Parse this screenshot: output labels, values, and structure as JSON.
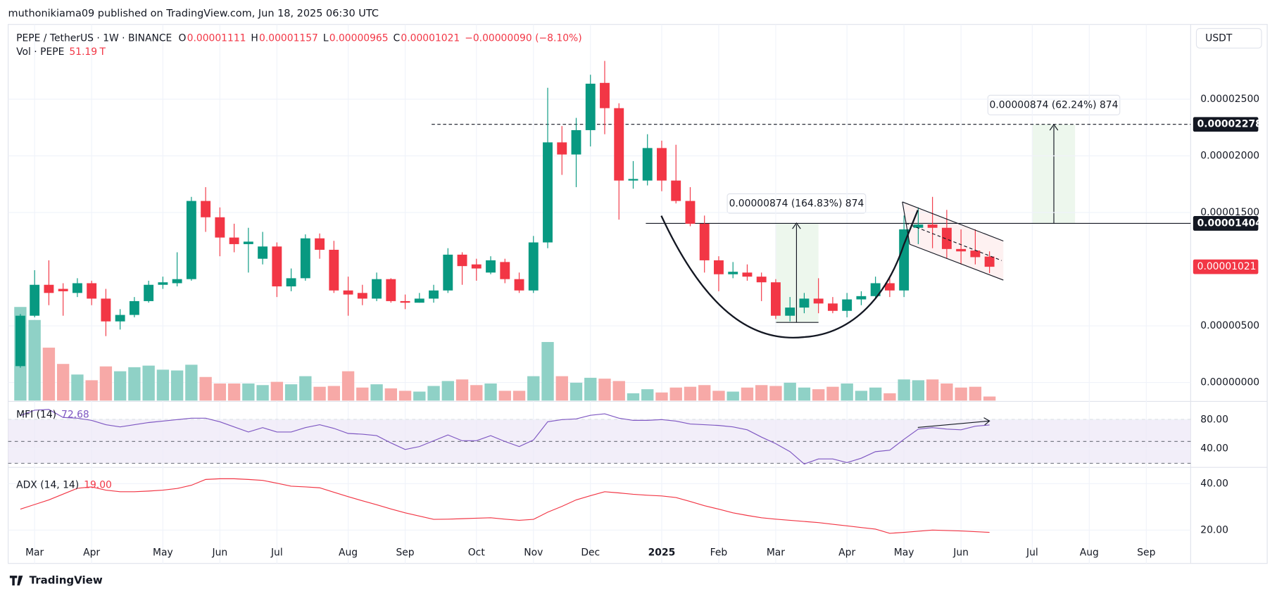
{
  "header": {
    "publisher": "muthonikiama09 published on TradingView.com, Jun 18, 2025 06:30 UTC",
    "brand": "TradingView",
    "currency": "USDT"
  },
  "chart_data": [
    {
      "type": "candlestick",
      "title": "PEPE / TetherUS · 1W · BINANCE",
      "ohlc_prefixes": [
        "O",
        "H",
        "L",
        "C"
      ],
      "change_label": "−0.00000090 (−8.10%)",
      "up_color": "#089981",
      "down_color": "#f23645",
      "categories": [
        null,
        "Mar",
        null,
        null,
        null,
        "Apr",
        null,
        null,
        null,
        null,
        "May",
        null,
        null,
        null,
        "Jun",
        null,
        null,
        null,
        "Jul",
        null,
        null,
        null,
        null,
        "Aug",
        null,
        null,
        null,
        "Sep",
        null,
        null,
        null,
        null,
        "Oct",
        null,
        null,
        null,
        "Nov",
        null,
        null,
        null,
        "Dec",
        null,
        null,
        null,
        null,
        "2025",
        null,
        null,
        null,
        "Feb",
        null,
        null,
        null,
        "Mar",
        null,
        null,
        null,
        null,
        "Apr",
        null,
        null,
        null,
        "May",
        null,
        null,
        null,
        "Jun",
        null,
        null,
        null,
        null,
        "Jul",
        null,
        null,
        null,
        "Aug",
        null,
        null,
        null,
        "Sep",
        null,
        null
      ],
      "open": [
        1.44e-06,
        5.89e-06,
        8.62e-06,
        8.26e-06,
        7.9e-06,
        8.76e-06,
        7.4e-06,
        5.39e-06,
        5.96e-06,
        7.18e-06,
        8.62e-06,
        8.76e-06,
        9.12e-06,
        1.602e-05,
        1.458e-05,
        1.279e-05,
        1.221e-05,
        1.092e-05,
        1.2e-05,
        8.48e-06,
        9.2e-06,
        1.272e-05,
        1.171e-05,
        8.12e-06,
        7.9e-06,
        7.4e-06,
        9.12e-06,
        7.18e-06,
        7.04e-06,
        7.4e-06,
        8.12e-06,
        1.128e-05,
        1.042e-05,
        9.7e-06,
        1.063e-05,
        9.12e-06,
        8.12e-06,
        1.236e-05,
        2.119e-05,
        2.012e-05,
        2.227e-05,
        2.644e-05,
        2.421e-05,
        1.782e-05,
        1.782e-05,
        2.069e-05,
        1.782e-05,
        1.602e-05,
        1.401e-05,
        1.078e-05,
        9.55e-06,
        9.7e-06,
        9.34e-06,
        8.84e-06,
        5.89e-06,
        6.61e-06,
        7.4e-06,
        6.97e-06,
        6.32e-06,
        7.33e-06,
        7.62e-06,
        8.76e-06,
        8.12e-06,
        1.365e-05,
        1.394e-05,
        1.365e-05,
        1.178e-05,
        1.164e-05,
        1.111e-05,
        null,
        null,
        null,
        null,
        null,
        null,
        null,
        null,
        null,
        null,
        null,
        null,
        null
      ],
      "high": [
        6.04e-06,
        9.91e-06,
        1.078e-05,
        8.76e-06,
        9.2e-06,
        8.98e-06,
        8.26e-06,
        6.47e-06,
        7.54e-06,
        8.98e-06,
        9.34e-06,
        1.149e-05,
        1.638e-05,
        1.724e-05,
        1.545e-05,
        1.401e-05,
        1.365e-05,
        1.329e-05,
        1.236e-05,
        1.006e-05,
        1.307e-05,
        1.315e-05,
        1.25e-05,
        9.34e-06,
        8.62e-06,
        9.7e-06,
        9.2e-06,
        7.76e-06,
        7.9e-06,
        8.62e-06,
        1.185e-05,
        1.149e-05,
        1.092e-05,
        1.114e-05,
        1.092e-05,
        9.7e-06,
        1.293e-05,
        2.601e-05,
        2.263e-05,
        2.335e-05,
        2.716e-05,
        2.838e-05,
        2.464e-05,
        1.954e-05,
        2.191e-05,
        2.134e-05,
        2.098e-05,
        1.724e-05,
        1.473e-05,
        1.114e-05,
        1.063e-05,
        1.042e-05,
        9.7e-06,
        9.12e-06,
        7.54e-06,
        7.9e-06,
        9.2e-06,
        7.54e-06,
        7.9e-06,
        8.05e-06,
        9.34e-06,
        9.34e-06,
        1.473e-05,
        1.545e-05,
        1.638e-05,
        1.523e-05,
        1.351e-05,
        1.351e-05,
        1.157e-05,
        null,
        null,
        null,
        null,
        null,
        null,
        null,
        null,
        null,
        null,
        null,
        null,
        null
      ],
      "low": [
        1.3e-06,
        5.75e-06,
        6.82e-06,
        5.89e-06,
        7.54e-06,
        6.82e-06,
        4.09e-06,
        4.67e-06,
        5.75e-06,
        7.04e-06,
        8.26e-06,
        8.48e-06,
        8.98e-06,
        1.329e-05,
        1.114e-05,
        1.149e-05,
        9.7e-06,
        1.042e-05,
        7.54e-06,
        8.05e-06,
        8.98e-06,
        1.092e-05,
        7.9e-06,
        5.89e-06,
        6.82e-06,
        7.18e-06,
        7.04e-06,
        6.47e-06,
        7.04e-06,
        7.04e-06,
        7.9e-06,
        8.62e-06,
        8.98e-06,
        9.55e-06,
        8.76e-06,
        7.9e-06,
        7.9e-06,
        1.185e-05,
        1.832e-05,
        1.724e-05,
        2.083e-05,
        2.191e-05,
        1.437e-05,
        1.71e-05,
        1.739e-05,
        1.688e-05,
        1.58e-05,
        1.379e-05,
        9.7e-06,
        8.05e-06,
        9.2e-06,
        8.98e-06,
        7.18e-06,
        5.6e-06,
        5.39e-06,
        6.11e-06,
        6.11e-06,
        6.11e-06,
        5.75e-06,
        6.82e-06,
        7.33e-06,
        7.54e-06,
        7.54e-06,
        1.221e-05,
        1.185e-05,
        1.092e-05,
        1.042e-05,
        1.042e-05,
        9.65e-06,
        null,
        null,
        null,
        null,
        null,
        null,
        null,
        null,
        null,
        null,
        null,
        null,
        null
      ],
      "close": [
        5.89e-06,
        8.62e-06,
        7.9e-06,
        8.05e-06,
        8.76e-06,
        7.4e-06,
        5.39e-06,
        5.96e-06,
        7.18e-06,
        8.62e-06,
        8.84e-06,
        9.12e-06,
        1.602e-05,
        1.458e-05,
        1.279e-05,
        1.221e-05,
        1.243e-05,
        1.2e-05,
        8.48e-06,
        9.2e-06,
        1.272e-05,
        1.171e-05,
        8.12e-06,
        7.76e-06,
        7.4e-06,
        9.12e-06,
        7.18e-06,
        7.04e-06,
        7.4e-06,
        8.12e-06,
        1.128e-05,
        1.027e-05,
        1.006e-05,
        1.078e-05,
        9.12e-06,
        8.12e-06,
        1.236e-05,
        2.119e-05,
        2.012e-05,
        2.227e-05,
        2.637e-05,
        2.421e-05,
        1.782e-05,
        1.796e-05,
        2.069e-05,
        1.782e-05,
        1.602e-05,
        1.401e-05,
        1.078e-05,
        9.55e-06,
        9.77e-06,
        9.34e-06,
        8.84e-06,
        5.89e-06,
        6.61e-06,
        7.4e-06,
        6.97e-06,
        6.32e-06,
        7.33e-06,
        7.62e-06,
        8.76e-06,
        8.12e-06,
        1.351e-05,
        1.394e-05,
        1.365e-05,
        1.178e-05,
        1.157e-05,
        1.106e-05,
        1.021e-05,
        null,
        null,
        null,
        null,
        null,
        null,
        null,
        null,
        null,
        null,
        null,
        null,
        null
      ],
      "ylim": [
        -1.6e-06,
        3.16e-05
      ],
      "yticks": [
        {
          "value": 0,
          "label": "0.00000000"
        },
        {
          "value": 5e-06,
          "label": "0.00000500"
        },
        {
          "value": 1.5e-05,
          "label": "0.00001500"
        },
        {
          "value": 2e-05,
          "label": "0.00002000"
        },
        {
          "value": 2.5e-05,
          "label": "0.00002500"
        }
      ],
      "grid": true,
      "volume": {
        "name": "Vol · PEPE",
        "unit": "T",
        "up_color": "#8fd1c6",
        "down_color": "#f7a9a7",
        "values": [
          1178,
          1014,
          666,
          461,
          328,
          256,
          430,
          369,
          420,
          440,
          389,
          379,
          451,
          297,
          215,
          215,
          215,
          195,
          236,
          205,
          307,
          174,
          184,
          369,
          164,
          205,
          154,
          123,
          113,
          184,
          246,
          266,
          195,
          215,
          123,
          123,
          307,
          737,
          307,
          225,
          287,
          276,
          246,
          92,
          143,
          102,
          164,
          174,
          195,
          123,
          113,
          164,
          195,
          184,
          225,
          164,
          143,
          174,
          215,
          123,
          164,
          92,
          266,
          256,
          266,
          215,
          164,
          174,
          51.19,
          null,
          null,
          null,
          null,
          null,
          null,
          null,
          null,
          null,
          null,
          null,
          null,
          null
        ]
      },
      "levels": [
        {
          "value": 2.278e-05,
          "style": "dashed"
        },
        {
          "value": 1.404e-05,
          "style": "solid"
        }
      ],
      "annotations": [
        "0.00000874 (164.83%) 874",
        "0.00000874 (62.24%) 874"
      ]
    },
    {
      "type": "line",
      "title": "MFI (14)",
      "color": "#7e57c2",
      "ylim": [
        15,
        100
      ],
      "yticks": [
        {
          "value": 40,
          "label": "40.00"
        },
        {
          "value": 80,
          "label": "80.00"
        }
      ],
      "bands": [
        20,
        50,
        80
      ],
      "values": [
        85.6,
        93,
        94,
        83,
        82,
        79,
        73,
        70,
        73,
        76,
        78,
        80,
        82,
        82,
        77,
        70,
        63,
        69,
        63,
        63,
        69,
        73,
        68,
        61,
        60,
        58,
        48,
        39,
        43,
        51,
        59,
        51,
        51,
        58,
        50,
        43,
        52,
        77,
        80,
        81,
        86,
        88,
        82,
        79,
        79,
        80,
        78,
        74,
        73,
        72,
        70,
        66,
        56,
        47,
        36,
        19,
        26,
        26,
        21,
        27,
        36,
        38,
        53,
        67,
        69,
        67,
        66,
        71,
        72.68,
        null,
        null,
        null,
        null,
        null,
        null,
        null,
        null,
        null,
        null,
        null,
        null,
        null
      ]
    },
    {
      "type": "line",
      "title": "ADX (14, 14)",
      "color": "#f23645",
      "ylim": [
        14,
        46.7
      ],
      "yticks": [
        {
          "value": 20,
          "label": "20.00"
        },
        {
          "value": 40,
          "label": "40.00"
        }
      ],
      "values": [
        29,
        31,
        33,
        35.5,
        38,
        38.6,
        37.2,
        36.5,
        36.5,
        36.8,
        37.2,
        37.9,
        39.3,
        41.8,
        42.1,
        42.1,
        41.8,
        41.4,
        40.2,
        38.9,
        38.6,
        38.2,
        36.3,
        34.4,
        32.6,
        30.9,
        29.1,
        27.4,
        26,
        24.6,
        24.7,
        24.9,
        25.1,
        25.3,
        24.7,
        24.2,
        24.6,
        27.7,
        30.2,
        33,
        34.8,
        36.5,
        36,
        35.4,
        35,
        34.7,
        34,
        32.3,
        30.5,
        29,
        27.4,
        26.3,
        25.3,
        24.7,
        24.2,
        23.7,
        23.2,
        22.5,
        21.8,
        21.1,
        20.4,
        18.6,
        19,
        19.5,
        20,
        19.8,
        19.6,
        19.3,
        19,
        null,
        null,
        null,
        null,
        null,
        null,
        null,
        null,
        null,
        null,
        null,
        null,
        null
      ],
      "value_labels": [
        null,
        null,
        null,
        null,
        null,
        null,
        null,
        null,
        null,
        null,
        null,
        null,
        null,
        null,
        null,
        null,
        null,
        null,
        null,
        null,
        null,
        null,
        null,
        null,
        null,
        null,
        null,
        null,
        null,
        null,
        null,
        null,
        null,
        null,
        null,
        null,
        null,
        null,
        null,
        null,
        null,
        null,
        null,
        null,
        null,
        null,
        null,
        null,
        null,
        null,
        null,
        null,
        null,
        null,
        null,
        null,
        null,
        null,
        null,
        null,
        null,
        null,
        null,
        null,
        null,
        null,
        null,
        null,
        "19.00",
        null,
        null,
        null,
        null,
        null,
        null,
        null,
        null,
        null,
        null,
        null,
        null,
        null
      ]
    }
  ]
}
